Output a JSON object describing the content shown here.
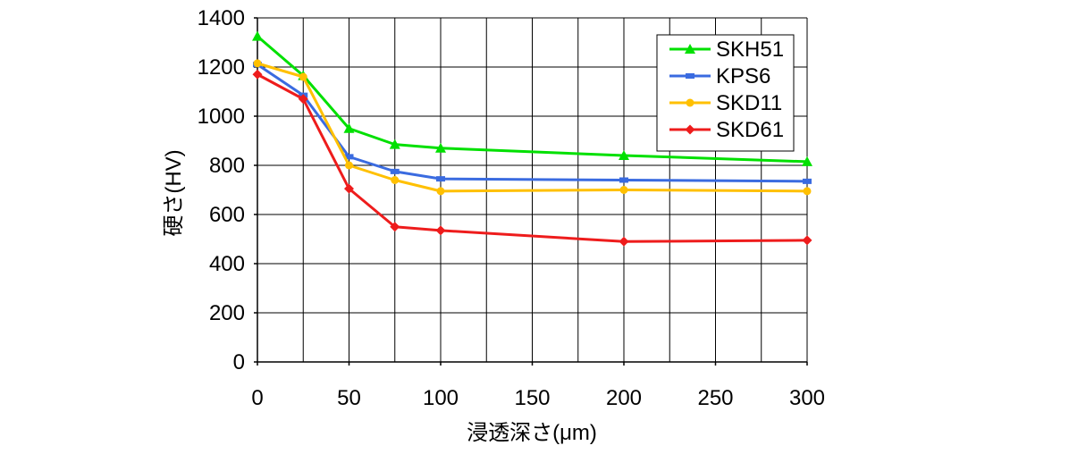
{
  "chart_data": {
    "type": "line",
    "xlabel": "浸透深さ(μm)",
    "ylabel": "硬さ(HV)",
    "xlim": [
      0,
      300
    ],
    "ylim": [
      0,
      1400
    ],
    "xticks": [
      0,
      50,
      100,
      150,
      200,
      250,
      300
    ],
    "yticks": [
      0,
      200,
      400,
      600,
      800,
      1000,
      1200,
      1400
    ],
    "x_grid_step": 25,
    "grid": true,
    "legend_position": "top-right",
    "series": [
      {
        "name": "SKH51",
        "color": "#00e000",
        "marker": "triangle",
        "x": [
          0,
          25,
          50,
          75,
          100,
          200,
          300
        ],
        "y": [
          1325,
          1165,
          950,
          885,
          870,
          840,
          815
        ]
      },
      {
        "name": "KPS6",
        "color": "#3a6be0",
        "marker": "dash",
        "x": [
          0,
          25,
          50,
          75,
          100,
          200,
          300
        ],
        "y": [
          1210,
          1085,
          835,
          775,
          745,
          740,
          735
        ]
      },
      {
        "name": "SKD11",
        "color": "#ffc000",
        "marker": "circle",
        "x": [
          0,
          25,
          50,
          75,
          100,
          200,
          300
        ],
        "y": [
          1215,
          1160,
          800,
          740,
          695,
          700,
          695
        ]
      },
      {
        "name": "SKD61",
        "color": "#ee1c1c",
        "marker": "diamond",
        "x": [
          0,
          25,
          50,
          75,
          100,
          200,
          300
        ],
        "y": [
          1170,
          1070,
          705,
          550,
          535,
          490,
          495
        ]
      }
    ]
  }
}
